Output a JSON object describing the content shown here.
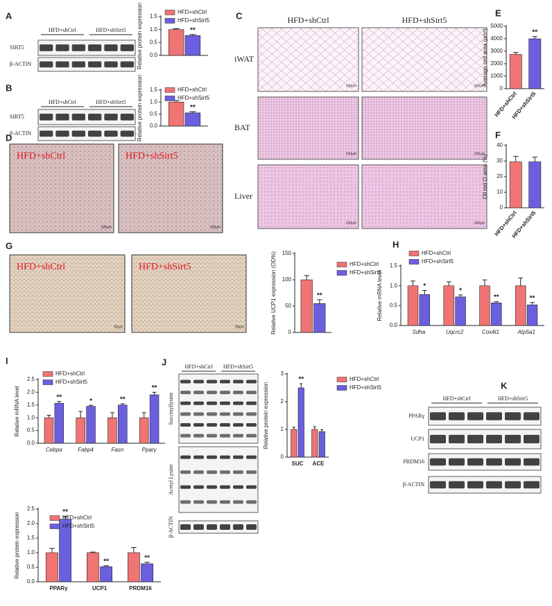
{
  "figure": {
    "letters": [
      "A",
      "B",
      "C",
      "D",
      "E",
      "F",
      "G",
      "H",
      "I",
      "J",
      "K"
    ],
    "blot_A": {
      "groups": [
        "HFD+shCtrl",
        "HFD+shSirt5"
      ],
      "rows": [
        "SIRT5",
        "β-ACTIN"
      ]
    },
    "blot_B": {
      "groups": [
        "HFD+shCtrl",
        "HFD+shSirt5"
      ],
      "rows": [
        "SIRT5",
        "β-ACTIN"
      ]
    },
    "micrographs_C": {
      "columns": [
        "HFD+shCtrl",
        "HFD+shSirt5"
      ],
      "rows": [
        "iWAT",
        "BAT",
        "Liver"
      ],
      "scale_bar": "100μm"
    },
    "images_D": {
      "labels": [
        "HFD+shCtrl",
        "HFD+shSirt5"
      ],
      "scale_bar": "100μm"
    },
    "images_G": {
      "labels": [
        "HFD+shCtrl",
        "HFD+shSirt5"
      ],
      "scale_bar": "50μm"
    },
    "blot_J": {
      "groups": [
        "HFD+shCtrl",
        "HFD+shSirt5"
      ],
      "rows": [
        "Succinyllysine",
        "Acetyl Lysine",
        "β-ACTIN"
      ]
    },
    "blot_K": {
      "groups": [
        "HFD+shCtrl",
        "HFD+shSirt5"
      ],
      "rows": [
        "PPARγ",
        "UCP1",
        "PRDM16",
        "β-ACTIN"
      ]
    }
  },
  "chart_data": [
    {
      "type": "bar",
      "y_label": "Relative protein expression",
      "categories": [
        null
      ],
      "series": [
        {
          "name": "HFD+shCtrl",
          "color": "#f07474",
          "values": [
            1.0
          ],
          "errors": [
            0.03
          ]
        },
        {
          "name": "HFD+shSirt5",
          "color": "#6b5fe0",
          "values": [
            0.77
          ],
          "errors": [
            0.04
          ]
        }
      ],
      "annotations": [
        "**"
      ],
      "ylim": [
        0,
        1.5
      ],
      "yticks": [
        {
          "value": 0,
          "label": "0.0"
        },
        0.5,
        {
          "value": 1,
          "label": "1.0"
        },
        1.5
      ]
    },
    {
      "type": "bar",
      "y_label": "Relative protein expression",
      "categories": [
        null
      ],
      "series": [
        {
          "name": "HFD+shCtrl",
          "color": "#f07474",
          "values": [
            1.0
          ],
          "errors": [
            0.06
          ]
        },
        {
          "name": "HFD+shSirt5",
          "color": "#6b5fe0",
          "values": [
            0.55
          ],
          "errors": [
            0.05
          ]
        }
      ],
      "annotations": [
        "**"
      ],
      "ylim": [
        0,
        1.5
      ],
      "yticks": [
        {
          "value": 0,
          "label": "0.0"
        },
        0.5,
        {
          "value": 1,
          "label": "1.0"
        },
        1.5
      ]
    },
    {
      "type": "bar",
      "y_label": "Average cell area (μm²)",
      "categories": [
        "HFD+shCtrl",
        "HFD+shSirt5"
      ],
      "series": [
        {
          "colors": [
            "#f07474",
            "#6b5fe0"
          ],
          "values": [
            2750,
            4000
          ],
          "errors": [
            150,
            180
          ]
        }
      ],
      "annotations": [
        null,
        "**"
      ],
      "ylim": [
        0,
        5000
      ],
      "yticks": [
        0,
        1000,
        2000,
        3000,
        4000,
        5000
      ]
    },
    {
      "type": "bar",
      "y_label": "Oil red O area (%)",
      "categories": [
        "HFD+shCtrl",
        "HFD+shSirt5"
      ],
      "series": [
        {
          "colors": [
            "#f07474",
            "#6b5fe0"
          ],
          "values": [
            29.5,
            29.5
          ],
          "errors": [
            3.5,
            3
          ]
        }
      ],
      "ylim": [
        0,
        40
      ],
      "yticks": [
        0,
        10,
        20,
        30,
        40
      ]
    },
    {
      "type": "bar",
      "y_label": "Relative UCP1 expression (OD%)",
      "categories": [
        null
      ],
      "series": [
        {
          "name": "HFD+shCtrl",
          "color": "#f07474",
          "values": [
            100
          ],
          "errors": [
            8
          ]
        },
        {
          "name": "HFD+shSirt5",
          "color": "#6b5fe0",
          "values": [
            55
          ],
          "errors": [
            7
          ]
        }
      ],
      "annotations": [
        "**"
      ],
      "ylim": [
        0,
        150
      ],
      "yticks": [
        0,
        50,
        100,
        150
      ]
    },
    {
      "type": "bar",
      "y_label": "Relative mRNA level",
      "categories": [
        "Sdha",
        "Uqcrc2",
        "Cox4i1",
        "Atp5a1"
      ],
      "series": [
        {
          "name": "HFD+shCtrl",
          "color": "#f07474",
          "values": [
            1,
            1,
            1,
            1
          ],
          "errors": [
            0.12,
            0.1,
            0.15,
            0.2
          ]
        },
        {
          "name": "HFD+shSirt5",
          "color": "#6b5fe0",
          "values": [
            0.78,
            0.72,
            0.57,
            0.52
          ],
          "errors": [
            0.1,
            0.05,
            0.03,
            0.06
          ]
        }
      ],
      "annotations": [
        "*",
        "*",
        "**",
        "**"
      ],
      "ylim": [
        0,
        1.5
      ],
      "yticks": [
        {
          "value": 0,
          "label": "0.0"
        },
        0.5,
        {
          "value": 1,
          "label": "1.0"
        },
        1.5
      ]
    },
    {
      "type": "bar",
      "y_label": "Relative mRNA level",
      "categories": [
        "Cebpα",
        "Fabp4",
        "Fasn",
        "Pparγ"
      ],
      "series": [
        {
          "name": "HFD+shCtrl",
          "color": "#f07474",
          "values": [
            1,
            1,
            1,
            1
          ],
          "errors": [
            0.1,
            0.25,
            0.2,
            0.2
          ]
        },
        {
          "name": "HFD+shSirt5",
          "color": "#6b5fe0",
          "values": [
            1.57,
            1.45,
            1.5,
            1.9
          ],
          "errors": [
            0.07,
            0.04,
            0.05,
            0.1
          ]
        }
      ],
      "annotations": [
        "**",
        "*",
        "**",
        "**"
      ],
      "ylim": [
        0,
        2.5
      ],
      "yticks": [
        {
          "value": 0,
          "label": "0.0"
        },
        0.5,
        {
          "value": 1,
          "label": "1.0"
        },
        1.5,
        {
          "value": 2,
          "label": "2.0"
        },
        2.5
      ]
    },
    {
      "type": "bar",
      "y_label": "Relative protein expression",
      "categories": [
        "SUC",
        "ACE"
      ],
      "series": [
        {
          "name": "HFD+shCtrl",
          "color": "#f07474",
          "values": [
            1,
            1
          ],
          "errors": [
            0.08,
            0.1
          ]
        },
        {
          "name": "HFD+shSirt5",
          "color": "#6b5fe0",
          "values": [
            2.5,
            0.92
          ],
          "errors": [
            0.15,
            0.07
          ]
        }
      ],
      "annotations": [
        "**",
        null
      ],
      "ylim": [
        0,
        3
      ],
      "yticks": [
        0,
        1,
        2,
        3
      ]
    },
    {
      "type": "bar",
      "y_label": "Relative protein expression",
      "categories": [
        "PPARγ",
        "UCP1",
        "PRDM16"
      ],
      "series": [
        {
          "name": "HFD+shCtrl",
          "color": "#f07474",
          "values": [
            1,
            1,
            1
          ],
          "errors": [
            0.15,
            0.02,
            0.18
          ]
        },
        {
          "name": "HFD+shSirt5",
          "color": "#6b5fe0",
          "values": [
            2.15,
            0.52,
            0.62
          ],
          "errors": [
            0.1,
            0.03,
            0.05
          ]
        }
      ],
      "annotations": [
        "**",
        "**",
        "**"
      ],
      "ylim": [
        0,
        2.5
      ],
      "yticks": [
        {
          "value": 0,
          "label": "0.0"
        },
        0.5,
        {
          "value": 1,
          "label": "1.0"
        },
        1.5,
        {
          "value": 2,
          "label": "2.0"
        },
        2.5
      ]
    }
  ]
}
